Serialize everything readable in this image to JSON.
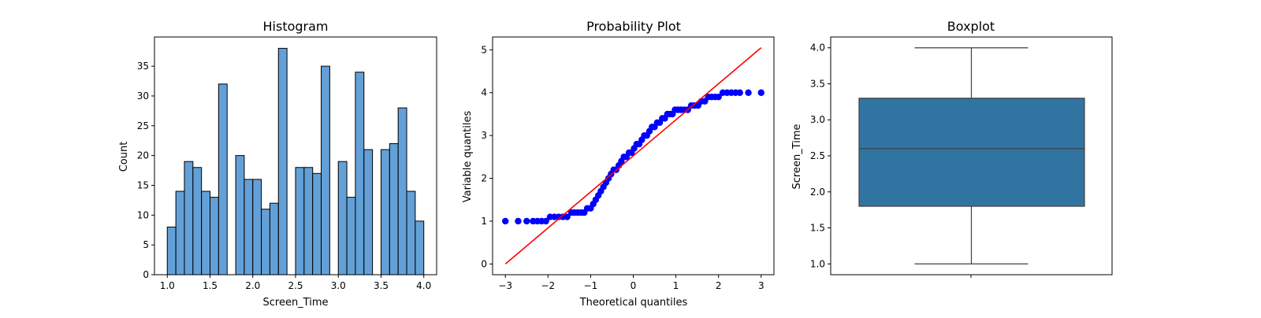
{
  "chart_data": [
    {
      "type": "bar",
      "title": "Histogram",
      "xlabel": "Screen_Time",
      "ylabel": "Count",
      "xlim": [
        0.85,
        4.15
      ],
      "ylim": [
        0,
        39.9
      ],
      "xticks": [
        1.0,
        1.5,
        2.0,
        2.5,
        3.0,
        3.5,
        4.0
      ],
      "xtick_labels": [
        "1.0",
        "1.5",
        "2.0",
        "2.5",
        "3.0",
        "3.5",
        "4.0"
      ],
      "yticks": [
        0,
        5,
        10,
        15,
        20,
        25,
        30,
        35
      ],
      "ytick_labels": [
        "0",
        "5",
        "10",
        "15",
        "20",
        "25",
        "30",
        "35"
      ],
      "bin_start": 1.0,
      "bin_width": 0.1,
      "values": [
        8,
        14,
        19,
        18,
        14,
        13,
        32,
        0,
        20,
        16,
        16,
        11,
        12,
        38,
        0,
        18,
        18,
        17,
        35,
        0,
        19,
        13,
        34,
        21,
        0,
        21,
        22,
        28,
        14,
        9
      ],
      "color": "#5b9bd5"
    },
    {
      "type": "scatter",
      "title": "Probability Plot",
      "xlabel": "Theoretical quantiles",
      "ylabel": "Variable quantiles",
      "xlim": [
        -3.3,
        3.3
      ],
      "ylim": [
        -0.25,
        5.3
      ],
      "xticks": [
        -3,
        -2,
        -1,
        0,
        1,
        2,
        3
      ],
      "xtick_labels": [
        "−3",
        "−2",
        "−1",
        "0",
        "1",
        "2",
        "3"
      ],
      "yticks": [
        0,
        1,
        2,
        3,
        4,
        5
      ],
      "ytick_labels": [
        "0",
        "1",
        "2",
        "3",
        "4",
        "5"
      ],
      "points": [
        [
          -3.0,
          1.0
        ],
        [
          -2.7,
          1.0
        ],
        [
          -2.5,
          1.0
        ],
        [
          -2.35,
          1.0
        ],
        [
          -2.25,
          1.0
        ],
        [
          -2.15,
          1.0
        ],
        [
          -2.05,
          1.0
        ],
        [
          -1.95,
          1.1
        ],
        [
          -1.85,
          1.1
        ],
        [
          -1.75,
          1.1
        ],
        [
          -1.65,
          1.1
        ],
        [
          -1.55,
          1.1
        ],
        [
          -1.45,
          1.2
        ],
        [
          -1.38,
          1.2
        ],
        [
          -1.3,
          1.2
        ],
        [
          -1.22,
          1.2
        ],
        [
          -1.15,
          1.2
        ],
        [
          -1.08,
          1.3
        ],
        [
          -1.0,
          1.3
        ],
        [
          -0.94,
          1.4
        ],
        [
          -0.88,
          1.5
        ],
        [
          -0.82,
          1.6
        ],
        [
          -0.76,
          1.7
        ],
        [
          -0.7,
          1.8
        ],
        [
          -0.64,
          1.9
        ],
        [
          -0.58,
          2.0
        ],
        [
          -0.52,
          2.1
        ],
        [
          -0.46,
          2.2
        ],
        [
          -0.4,
          2.2
        ],
        [
          -0.34,
          2.3
        ],
        [
          -0.28,
          2.4
        ],
        [
          -0.22,
          2.5
        ],
        [
          -0.16,
          2.5
        ],
        [
          -0.1,
          2.6
        ],
        [
          -0.04,
          2.6
        ],
        [
          0.02,
          2.7
        ],
        [
          0.08,
          2.8
        ],
        [
          0.14,
          2.8
        ],
        [
          0.2,
          2.9
        ],
        [
          0.26,
          3.0
        ],
        [
          0.32,
          3.0
        ],
        [
          0.38,
          3.1
        ],
        [
          0.44,
          3.2
        ],
        [
          0.5,
          3.2
        ],
        [
          0.56,
          3.3
        ],
        [
          0.62,
          3.3
        ],
        [
          0.68,
          3.4
        ],
        [
          0.74,
          3.4
        ],
        [
          0.8,
          3.5
        ],
        [
          0.86,
          3.5
        ],
        [
          0.92,
          3.5
        ],
        [
          0.98,
          3.6
        ],
        [
          1.05,
          3.6
        ],
        [
          1.12,
          3.6
        ],
        [
          1.2,
          3.6
        ],
        [
          1.28,
          3.6
        ],
        [
          1.36,
          3.7
        ],
        [
          1.44,
          3.7
        ],
        [
          1.52,
          3.7
        ],
        [
          1.6,
          3.8
        ],
        [
          1.68,
          3.8
        ],
        [
          1.76,
          3.9
        ],
        [
          1.84,
          3.9
        ],
        [
          1.92,
          3.9
        ],
        [
          2.0,
          3.9
        ],
        [
          2.1,
          4.0
        ],
        [
          2.2,
          4.0
        ],
        [
          2.3,
          4.0
        ],
        [
          2.4,
          4.0
        ],
        [
          2.5,
          4.0
        ],
        [
          2.7,
          4.0
        ],
        [
          3.0,
          4.0
        ]
      ],
      "fit_line": {
        "x": [
          -3.0,
          3.0
        ],
        "y": [
          0.0,
          5.05
        ]
      },
      "point_color": "#0000ff",
      "line_color": "#ff0000"
    },
    {
      "type": "boxplot",
      "title": "Boxplot",
      "xlabel": "",
      "ylabel": "Screen_Time",
      "ylim": [
        0.85,
        4.15
      ],
      "yticks": [
        1.0,
        1.5,
        2.0,
        2.5,
        3.0,
        3.5,
        4.0
      ],
      "ytick_labels": [
        "1.0",
        "1.5",
        "2.0",
        "2.5",
        "3.0",
        "3.5",
        "4.0"
      ],
      "whisker_low": 1.0,
      "q1": 1.8,
      "median": 2.6,
      "q3": 3.3,
      "whisker_high": 4.0,
      "box_color": "#3274a1"
    }
  ]
}
